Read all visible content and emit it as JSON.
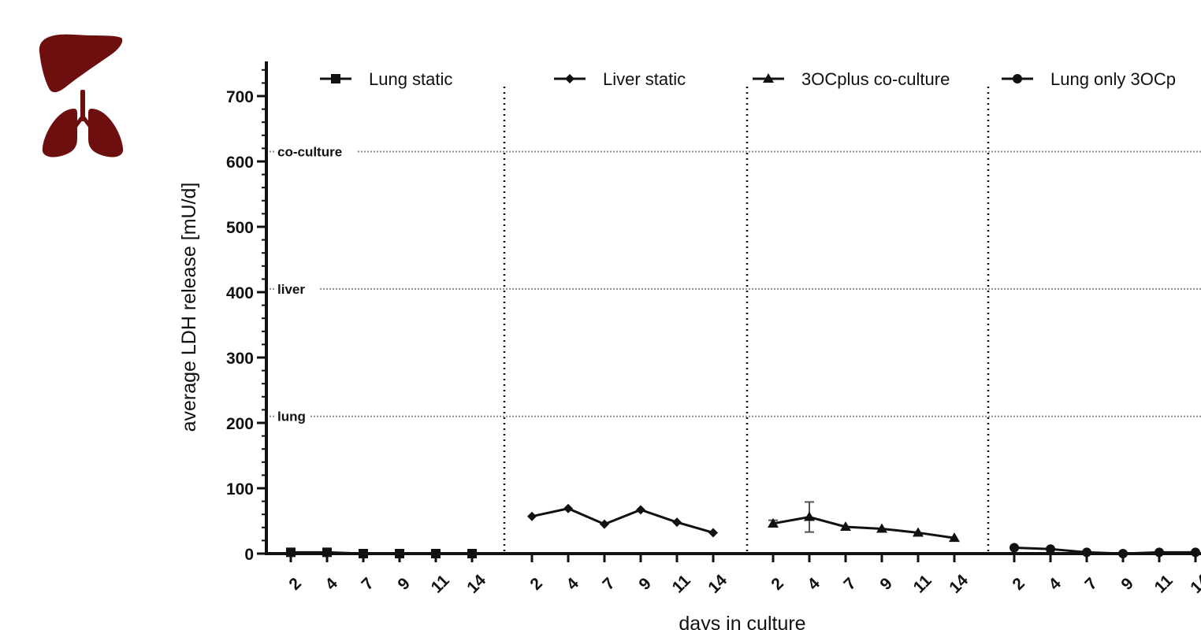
{
  "logo": {
    "icons": [
      "liver-icon",
      "lungs-icon"
    ],
    "color": "#6e0f0f"
  },
  "chart_data": {
    "type": "line",
    "ylabel": "average LDH release [mU/d]",
    "xlabel": "days in culture",
    "ylim": [
      0,
      750
    ],
    "yticks": [
      0,
      100,
      200,
      300,
      400,
      500,
      600,
      700
    ],
    "categories": [
      "2",
      "4",
      "7",
      "9",
      "11",
      "14"
    ],
    "reference_lines": [
      {
        "label": "co-culture",
        "value": 615
      },
      {
        "label": "liver",
        "value": 405
      },
      {
        "label": "lung",
        "value": 210
      }
    ],
    "series": [
      {
        "name": "Lung static",
        "marker": "square",
        "values": [
          2,
          2,
          0,
          0,
          0,
          0
        ]
      },
      {
        "name": "Liver static",
        "marker": "diamond",
        "values": [
          57,
          69,
          45,
          67,
          48,
          32
        ],
        "errors": [
          2,
          2,
          2,
          2,
          3,
          2
        ]
      },
      {
        "name": "3OCplus co-culture",
        "marker": "triangle",
        "values": [
          46,
          56,
          41,
          38,
          32,
          24
        ],
        "errors": [
          5,
          23,
          3,
          3,
          2,
          2
        ]
      },
      {
        "name": "Lung only 3OCp",
        "marker": "circle",
        "values": [
          9,
          7,
          2,
          0,
          2,
          2
        ]
      }
    ],
    "grid": false,
    "legend": "top"
  }
}
